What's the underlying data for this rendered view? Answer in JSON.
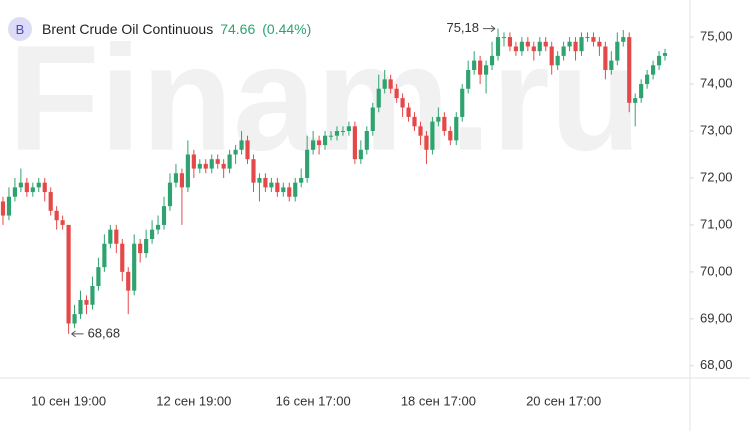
{
  "header": {
    "badge": "B",
    "title": "Brent Crude Oil Continuous",
    "last_price": 74.66,
    "change": {
      "value": 0.44,
      "label": "(0.44%)"
    }
  },
  "watermark": "Finam.ru",
  "chart_data": {
    "type": "candlestick",
    "up_color": "#2ea36f",
    "down_color": "#e54848",
    "grid": false,
    "categories": [
      null,
      null,
      null,
      null,
      null,
      null,
      null,
      null,
      null,
      null,
      null,
      "10 сен 19:00",
      null,
      null,
      null,
      null,
      null,
      null,
      null,
      null,
      null,
      null,
      null,
      null,
      null,
      null,
      null,
      null,
      null,
      null,
      null,
      null,
      "12 сен 19:00",
      null,
      null,
      null,
      null,
      null,
      null,
      null,
      null,
      null,
      null,
      null,
      null,
      null,
      null,
      null,
      null,
      null,
      null,
      null,
      "16 сен 17:00",
      null,
      null,
      null,
      null,
      null,
      null,
      null,
      null,
      null,
      null,
      null,
      null,
      null,
      null,
      null,
      null,
      null,
      null,
      null,
      null,
      "18 сен 17:00",
      null,
      null,
      null,
      null,
      null,
      null,
      null,
      null,
      null,
      null,
      null,
      null,
      null,
      null,
      null,
      null,
      null,
      null,
      null,
      null,
      "20 сен 17:00",
      null,
      null,
      null,
      null,
      null,
      null,
      null,
      null,
      null,
      null,
      null,
      null,
      null,
      null,
      null,
      null,
      null
    ],
    "open": [
      71.5,
      71.2,
      71.6,
      71.8,
      71.9,
      71.7,
      71.8,
      71.9,
      71.7,
      71.3,
      71.1,
      71.0,
      68.9,
      69.1,
      69.4,
      69.3,
      69.7,
      70.1,
      70.6,
      70.9,
      70.6,
      70.0,
      69.6,
      70.6,
      70.4,
      70.7,
      70.9,
      71.0,
      71.4,
      71.9,
      72.1,
      71.8,
      72.5,
      72.2,
      72.3,
      72.2,
      72.4,
      72.3,
      72.2,
      72.5,
      72.6,
      72.8,
      72.4,
      71.9,
      72.0,
      71.8,
      71.9,
      71.7,
      71.8,
      71.6,
      71.9,
      72.0,
      72.6,
      72.8,
      72.7,
      72.9,
      72.9,
      73.0,
      73.0,
      73.1,
      72.4,
      72.6,
      73.0,
      73.5,
      73.9,
      74.1,
      73.9,
      73.7,
      73.5,
      73.3,
      73.1,
      72.9,
      72.6,
      73.2,
      73.3,
      73.0,
      72.8,
      73.3,
      73.9,
      74.3,
      74.5,
      74.2,
      74.4,
      74.6,
      75.0,
      75.0,
      74.8,
      74.7,
      74.9,
      74.8,
      74.7,
      74.9,
      74.8,
      74.4,
      74.6,
      74.8,
      74.9,
      74.7,
      75.0,
      75.0,
      74.9,
      74.8,
      74.3,
      74.5,
      74.9,
      75.0,
      73.6,
      73.7,
      74.0,
      74.2,
      74.4,
      74.6
    ],
    "high": [
      71.6,
      71.8,
      72.0,
      72.2,
      72.0,
      71.9,
      72.0,
      72.0,
      71.8,
      71.4,
      71.2,
      71.0,
      69.3,
      69.6,
      69.5,
      69.9,
      70.3,
      70.8,
      71.0,
      71.0,
      70.7,
      70.1,
      70.8,
      70.7,
      70.9,
      71.1,
      71.2,
      71.6,
      72.1,
      72.3,
      72.2,
      72.8,
      72.6,
      72.4,
      72.4,
      72.5,
      72.5,
      72.4,
      72.6,
      72.7,
      73.0,
      72.9,
      72.5,
      72.1,
      72.1,
      72.0,
      72.0,
      71.9,
      71.9,
      72.0,
      72.2,
      72.9,
      73.0,
      72.9,
      73.0,
      73.0,
      73.1,
      73.1,
      73.2,
      73.2,
      72.8,
      73.1,
      73.6,
      74.2,
      74.3,
      74.2,
      74.0,
      73.8,
      73.6,
      73.4,
      73.2,
      73.0,
      73.3,
      73.5,
      73.4,
      73.1,
      73.4,
      74.0,
      74.5,
      74.7,
      74.6,
      74.5,
      74.9,
      75.18,
      75.1,
      75.1,
      74.9,
      75.0,
      75.0,
      74.9,
      75.0,
      75.0,
      74.9,
      74.7,
      74.9,
      75.0,
      75.0,
      75.1,
      75.1,
      75.1,
      75.0,
      74.9,
      74.7,
      75.1,
      75.15,
      75.1,
      73.8,
      74.1,
      74.3,
      74.5,
      74.7,
      74.75
    ],
    "low": [
      71.0,
      71.1,
      71.5,
      71.7,
      71.6,
      71.6,
      71.7,
      71.5,
      71.2,
      70.9,
      70.9,
      68.68,
      68.8,
      69.0,
      69.1,
      69.2,
      69.6,
      70.0,
      70.5,
      70.4,
      69.8,
      69.1,
      69.5,
      70.2,
      70.3,
      70.6,
      70.8,
      70.9,
      71.3,
      71.8,
      71.0,
      71.7,
      72.0,
      72.1,
      72.1,
      72.1,
      72.2,
      72.0,
      72.1,
      72.3,
      72.5,
      72.3,
      71.7,
      71.5,
      71.7,
      71.7,
      71.6,
      71.6,
      71.5,
      71.5,
      71.8,
      71.9,
      72.5,
      72.5,
      72.6,
      72.8,
      72.8,
      72.9,
      72.9,
      72.3,
      72.3,
      72.5,
      72.9,
      73.4,
      73.8,
      73.8,
      73.6,
      73.3,
      73.2,
      73.0,
      72.7,
      72.3,
      72.5,
      73.1,
      72.9,
      72.7,
      72.7,
      73.2,
      73.8,
      74.2,
      74.0,
      73.8,
      74.3,
      74.5,
      74.8,
      74.7,
      74.6,
      74.6,
      74.7,
      74.5,
      74.6,
      74.7,
      74.2,
      74.3,
      74.5,
      74.7,
      74.5,
      74.6,
      74.9,
      74.8,
      74.6,
      74.1,
      74.2,
      74.4,
      74.8,
      73.4,
      73.1,
      73.6,
      73.9,
      74.1,
      74.3,
      74.5
    ],
    "close": [
      71.2,
      71.6,
      71.8,
      71.9,
      71.7,
      71.8,
      71.9,
      71.7,
      71.3,
      71.1,
      71.0,
      68.9,
      69.1,
      69.4,
      69.3,
      69.7,
      70.1,
      70.6,
      70.9,
      70.6,
      70.0,
      69.6,
      70.6,
      70.4,
      70.7,
      70.9,
      71.0,
      71.4,
      71.9,
      72.1,
      71.8,
      72.5,
      72.2,
      72.3,
      72.2,
      72.4,
      72.3,
      72.2,
      72.5,
      72.6,
      72.8,
      72.4,
      71.9,
      72.0,
      71.8,
      71.9,
      71.7,
      71.8,
      71.6,
      71.9,
      72.0,
      72.6,
      72.8,
      72.7,
      72.9,
      72.9,
      73.0,
      73.0,
      73.1,
      72.4,
      72.6,
      73.0,
      73.5,
      73.9,
      74.1,
      73.9,
      73.7,
      73.5,
      73.3,
      73.1,
      72.9,
      72.6,
      73.2,
      73.3,
      73.0,
      72.8,
      73.3,
      73.9,
      74.3,
      74.5,
      74.2,
      74.4,
      74.6,
      75.0,
      75.0,
      74.8,
      74.7,
      74.9,
      74.8,
      74.7,
      74.9,
      74.8,
      74.4,
      74.6,
      74.8,
      74.9,
      74.7,
      75.0,
      75.0,
      74.9,
      74.8,
      74.3,
      74.5,
      74.9,
      75.0,
      73.6,
      73.7,
      74.0,
      74.2,
      74.4,
      74.6,
      74.66
    ],
    "ylim": [
      67.74,
      75.79
    ],
    "yticks": [
      {
        "value": 68,
        "label": "68,00"
      },
      {
        "value": 69,
        "label": "69,00"
      },
      {
        "value": 70,
        "label": "70,00"
      },
      {
        "value": 71,
        "label": "71,00"
      },
      {
        "value": 72,
        "label": "72,00"
      },
      {
        "value": 73,
        "label": "73,00"
      },
      {
        "value": 74,
        "label": "74,00"
      },
      {
        "value": 75,
        "label": "75,00"
      }
    ],
    "low_label": {
      "value": 68.68,
      "label": "68,68"
    },
    "high_label": {
      "value": 75.18,
      "label": "75,18"
    }
  }
}
